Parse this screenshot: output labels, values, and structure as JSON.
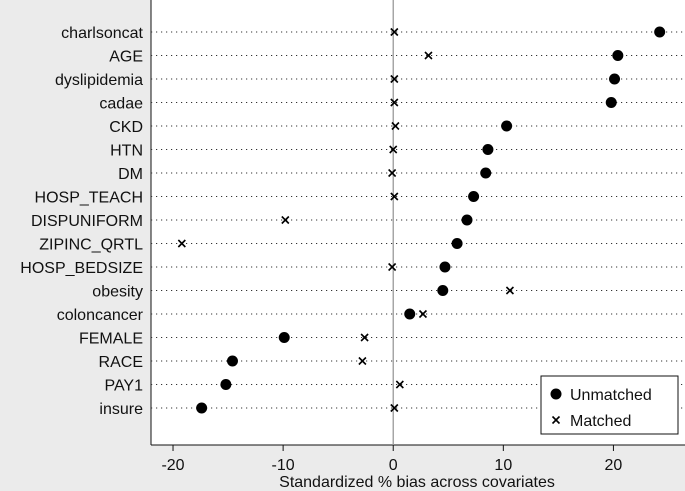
{
  "chart_data": {
    "type": "scatter",
    "xlabel": "Standardized % bias across covariates",
    "xlim": [
      -22,
      26.5
    ],
    "xticks": [
      -20,
      -10,
      0,
      10,
      20
    ],
    "xtick_labels": [
      "-20",
      "-10",
      "0",
      "10",
      "20"
    ],
    "grid": "dotted horizontal per covariate",
    "reference_line": 0,
    "legend_position": "bottom-right",
    "categories": [
      "charlsoncat",
      "AGE",
      "dyslipidemia",
      "cadae",
      "CKD",
      "HTN",
      "DM",
      "HOSP_TEACH",
      "DISPUNIFORM",
      "ZIPINC_QRTL",
      "HOSP_BEDSIZE",
      "obesity",
      "coloncancer",
      "FEMALE",
      "RACE",
      "PAY1",
      "insure"
    ],
    "series": [
      {
        "name": "Unmatched",
        "marker": "filled-circle",
        "color": "#000000",
        "values": [
          24.2,
          20.4,
          20.1,
          19.8,
          10.3,
          8.6,
          8.4,
          7.3,
          6.7,
          5.8,
          4.7,
          4.5,
          1.5,
          -9.9,
          -14.6,
          -15.2,
          -17.4
        ]
      },
      {
        "name": "Matched",
        "marker": "x",
        "color": "#000000",
        "values": [
          0.1,
          3.2,
          0.1,
          0.1,
          0.2,
          0.0,
          -0.1,
          0.1,
          -9.8,
          -19.2,
          -0.1,
          10.6,
          2.7,
          -2.6,
          -2.8,
          0.6,
          0.1
        ]
      }
    ]
  }
}
